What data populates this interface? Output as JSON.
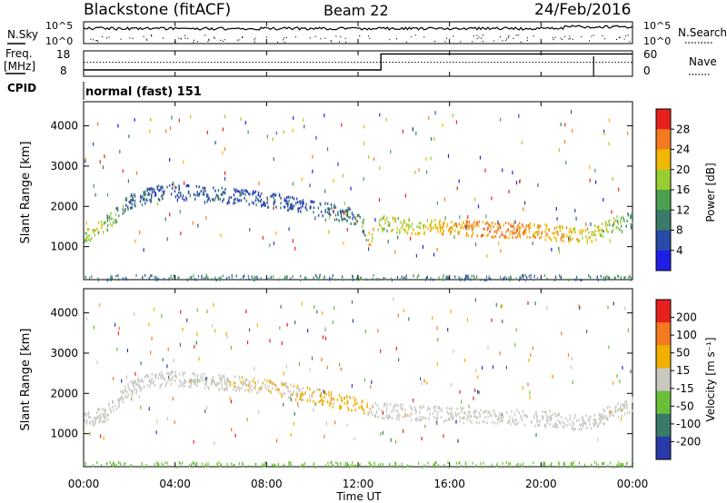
{
  "header": {
    "station": "Blackstone (fitACF)",
    "beam": "Beam 22",
    "date": "24/Feb/2016"
  },
  "panels": {
    "nsky": {
      "left_label": "N.Sky",
      "right_label": "N.Search",
      "left_ticks": [
        "10^5",
        "10^0"
      ],
      "right_ticks": [
        "10^5",
        "10^0"
      ]
    },
    "freq": {
      "left_label_1": "Freq.",
      "left_label_2": "[MHz]",
      "left_ticks": [
        "18",
        "8"
      ],
      "right_ticks": [
        "60",
        "0"
      ],
      "right_label": "Nave"
    },
    "cpid": {
      "label": "CPID",
      "text": "normal (fast) 151"
    }
  },
  "axes": {
    "ylabel": "Slant Range [km]",
    "yticks": [
      "4000",
      "3000",
      "2000",
      "1000"
    ],
    "xticks": [
      "00:00",
      "04:00",
      "08:00",
      "12:00",
      "16:00",
      "20:00",
      "00:00"
    ],
    "xlabel": "Time UT"
  },
  "colorbars": {
    "power": {
      "label": "Power [dB]",
      "ticks": [
        "28",
        "24",
        "20",
        "16",
        "12",
        "8",
        "4"
      ]
    },
    "velocity": {
      "label": "Velocity [m s⁻¹]",
      "ticks": [
        "200",
        "100",
        "50",
        "15",
        "-15",
        "-50",
        "-100",
        "-200"
      ]
    }
  },
  "colors": {
    "power_scale": [
      "#1e1ee6",
      "#2a4aa8",
      "#3a7a6a",
      "#4aa050",
      "#9acd32",
      "#f0b800",
      "#f47a20",
      "#e8201e"
    ],
    "velocity_scale": [
      "#2a3aa8",
      "#3a7a6a",
      "#6abf3a",
      "#c8c8c0",
      "#f0b000",
      "#f47a20",
      "#e8201e"
    ]
  },
  "chart_data": [
    {
      "type": "heatmap",
      "title": "Power",
      "xlabel": "Time UT",
      "ylabel": "Slant Range [km]",
      "xlim": [
        0,
        24
      ],
      "ylim": [
        180,
        4600
      ],
      "colorbar_range": [
        0,
        30
      ],
      "series": [
        {
          "name": "Power [dB]",
          "x": [
            0.0,
            0.5,
            1.0,
            1.5,
            2.0,
            3.0,
            4.0,
            6.0,
            8.0,
            10.0,
            12.0,
            12.5,
            13.0,
            14.0,
            16.0,
            18.0,
            20.0,
            22.0,
            23.5,
            24.0
          ],
          "y": [
            1350,
            1400,
            1550,
            1900,
            2150,
            2350,
            2400,
            2300,
            2200,
            2000,
            1750,
            1200,
            1600,
            1550,
            1500,
            1450,
            1400,
            1300,
            1650,
            1750
          ],
          "values": [
            16,
            18,
            16,
            12,
            8,
            6,
            6,
            6,
            6,
            6,
            10,
            20,
            16,
            18,
            22,
            24,
            22,
            20,
            14,
            12
          ]
        }
      ]
    },
    {
      "type": "heatmap",
      "title": "Velocity",
      "xlabel": "Time UT",
      "ylabel": "Slant Range [km]",
      "xlim": [
        0,
        24
      ],
      "ylim": [
        180,
        4600
      ],
      "colorbar_range": [
        -200,
        200
      ],
      "series": [
        {
          "name": "Velocity [m s⁻¹]",
          "x": [
            0.0,
            1.0,
            2.0,
            3.0,
            4.0,
            8.0,
            12.0,
            13.0,
            16.0,
            20.0,
            22.0,
            24.0
          ],
          "y": [
            1350,
            1550,
            2150,
            2350,
            2400,
            2200,
            1750,
            1600,
            1500,
            1400,
            1300,
            1750
          ],
          "values": [
            0,
            0,
            10,
            10,
            0,
            20,
            50,
            0,
            0,
            0,
            0,
            0
          ]
        }
      ]
    },
    {
      "type": "line",
      "title": "Freq. [MHz]",
      "x": [
        0,
        13,
        13,
        22.3,
        22.3,
        24
      ],
      "series": [
        {
          "name": "Freq.",
          "values": [
            10.5,
            10.5,
            16.8,
            16.8,
            16.8,
            16.8
          ]
        },
        {
          "name": "Nave",
          "values": [
            33,
            33,
            33,
            33,
            33,
            33
          ]
        }
      ]
    }
  ]
}
